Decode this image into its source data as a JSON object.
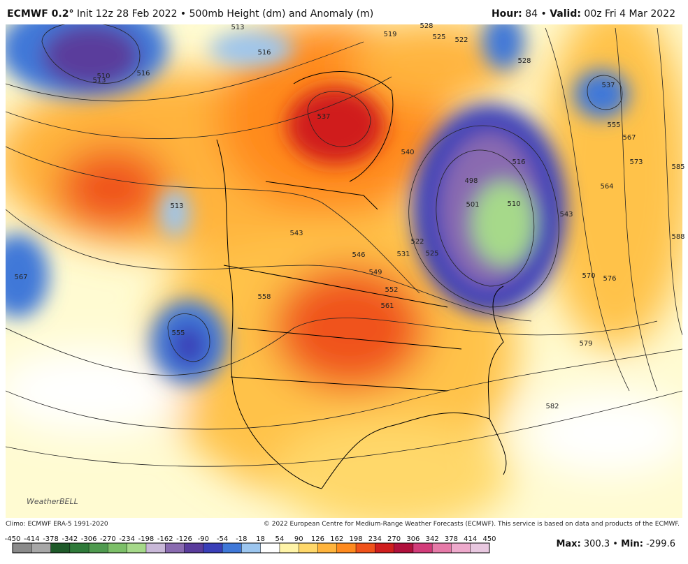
{
  "header": {
    "model": "ECMWF 0.2°",
    "subtitle": "Init 12z 28 Feb 2022 • 500mb Height (dm) and Anomaly (m)",
    "hour_label": "Hour:",
    "hour": "84",
    "separator": "•",
    "valid_label": "Valid:",
    "valid": "00z Fri 4 Mar 2022"
  },
  "map": {
    "contour_labels": [
      "513",
      "516",
      "510",
      "513",
      "516",
      "519",
      "528",
      "525",
      "522",
      "528",
      "537",
      "555",
      "567",
      "573",
      "585",
      "564",
      "543",
      "588",
      "570",
      "576",
      "579",
      "582",
      "537",
      "516",
      "498",
      "501",
      "510",
      "513",
      "522",
      "525",
      "531",
      "543",
      "546",
      "549",
      "552",
      "561",
      "558",
      "540",
      "567",
      "555"
    ],
    "logo": "WeatherBELL"
  },
  "footer": {
    "climo": "Climo: ECMWF ERA-5 1991-2020",
    "copyright": "© 2022 European Centre for Medium-Range Weather Forecasts (ECMWF). This service is based on data and products of the ECMWF."
  },
  "colorbar": {
    "ticks": [
      -450,
      -414,
      -378,
      -342,
      -306,
      -270,
      -234,
      -198,
      -162,
      -126,
      -90,
      -54,
      -18,
      18,
      54,
      90,
      126,
      162,
      198,
      234,
      270,
      306,
      342,
      378,
      414,
      450
    ],
    "colors": [
      "#8a8a8a",
      "#a7a7a7",
      "#1f5a2a",
      "#2f7a3a",
      "#4f9a4f",
      "#7cbf68",
      "#a6d98a",
      "#c9b8d8",
      "#8a6bb0",
      "#5a3c9c",
      "#3a3fb8",
      "#3f78d8",
      "#9cc6ef",
      "#ffffff",
      "#fff4a8",
      "#ffd86a",
      "#ffb43c",
      "#ff8a1e",
      "#f0521a",
      "#d01e1e",
      "#b0103c",
      "#d23c7a",
      "#e67aa8",
      "#eeaacc",
      "#e8c8e0"
    ]
  },
  "stats": {
    "max_label": "Max:",
    "max": "300.3",
    "separator": "•",
    "min_label": "Min:",
    "min": "-299.6"
  }
}
